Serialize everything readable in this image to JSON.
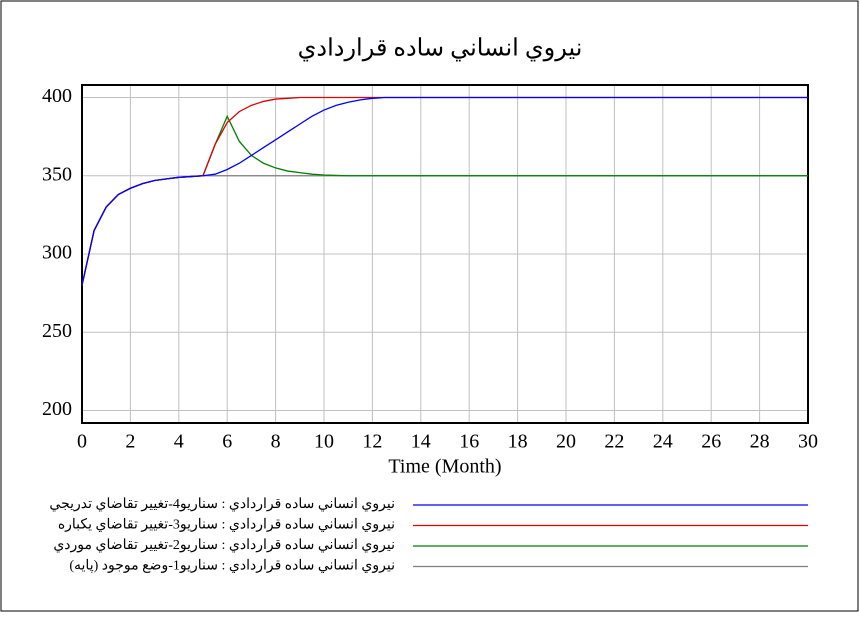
{
  "chart_data": {
    "type": "line",
    "title": "نيروي انساني ساده قراردادي",
    "xlabel": "Time (Month)",
    "x": [
      0,
      0.5,
      1,
      1.5,
      2,
      2.5,
      3,
      3.5,
      4,
      4.5,
      5,
      5.5,
      6,
      6.5,
      7,
      7.5,
      8,
      8.5,
      9,
      9.5,
      10,
      10.5,
      11,
      11.5,
      12,
      12.5,
      13,
      14,
      16,
      18,
      20,
      22,
      24,
      26,
      28,
      30
    ],
    "series": [
      {
        "name": "نيروي انساني ساده قراردادي : سناريو4-تغيير تقاضاي تدريجي",
        "color": "#0000ff",
        "values": [
          280,
          315,
          330,
          338,
          342,
          345,
          347,
          348,
          349,
          349.5,
          350,
          351,
          354,
          358,
          363,
          368,
          373,
          378,
          383,
          388,
          392,
          395,
          397,
          398.5,
          399.5,
          400,
          400,
          400,
          400,
          400,
          400,
          400,
          400,
          400,
          400,
          400
        ]
      },
      {
        "name": "نيروي انساني ساده قراردادي : سناريو3-تغيير تقاضاي يكباره",
        "color": "#e00000",
        "values": [
          280,
          315,
          330,
          338,
          342,
          345,
          347,
          348,
          349,
          349.5,
          350,
          370,
          384,
          391,
          395,
          397.5,
          399,
          399.5,
          400,
          400,
          400,
          400,
          400,
          400,
          400,
          400,
          400,
          400,
          400,
          400,
          400,
          400,
          400,
          400,
          400,
          400
        ]
      },
      {
        "name": "نيروي انساني ساده قراردادي : سناريو2-تغيير تقاضاي موردي",
        "color": "#008000",
        "values": [
          280,
          315,
          330,
          338,
          342,
          345,
          347,
          348,
          349,
          349.5,
          350,
          370,
          388,
          372,
          363,
          358,
          355,
          353,
          352,
          351,
          350.5,
          350.2,
          350,
          350,
          350,
          350,
          350,
          350,
          350,
          350,
          350,
          350,
          350,
          350,
          350,
          350
        ]
      },
      {
        "name": "نيروي انساني ساده قراردادي : سناريو1-وضع موجود (پايه)",
        "color": "#808080",
        "values": [
          280,
          315,
          330,
          338,
          342,
          345,
          347,
          348,
          349,
          349.5,
          350,
          350,
          350,
          350,
          350,
          350,
          350,
          350,
          350,
          350,
          350,
          350,
          350,
          350,
          350,
          350,
          350,
          350,
          350,
          350,
          350,
          350,
          350,
          350,
          350,
          350
        ]
      }
    ],
    "xlim": [
      0,
      30
    ],
    "xticks": [
      0,
      2,
      4,
      6,
      8,
      10,
      12,
      14,
      16,
      18,
      20,
      22,
      24,
      26,
      28,
      30
    ],
    "ylim": [
      192,
      408
    ],
    "yticks": [
      200,
      250,
      300,
      350,
      400
    ],
    "grid": true
  }
}
